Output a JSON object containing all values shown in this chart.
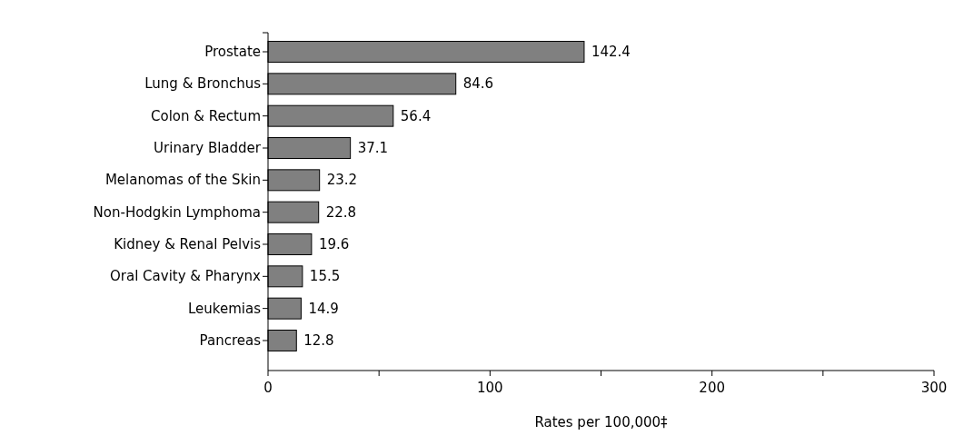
{
  "chart_data": {
    "type": "bar",
    "orientation": "horizontal",
    "xlabel": "Rates per 100,000‡",
    "categories": [
      "Prostate",
      "Lung & Bronchus",
      "Colon & Rectum",
      "Urinary Bladder",
      "Melanomas of the Skin",
      "Non-Hodgkin Lymphoma",
      "Kidney & Renal Pelvis",
      "Oral Cavity & Pharynx",
      "Leukemias",
      "Pancreas"
    ],
    "values": [
      142.4,
      84.6,
      56.4,
      37.1,
      23.2,
      22.8,
      19.6,
      15.5,
      14.9,
      12.8
    ],
    "color": "#808080",
    "data_labels": true,
    "grid": false,
    "xlim": [
      0,
      300
    ],
    "xticks": [
      0,
      {
        "value": 50,
        "label": null
      },
      100,
      {
        "value": 150,
        "label": null
      },
      200,
      {
        "value": 250,
        "label": null
      },
      300
    ]
  }
}
